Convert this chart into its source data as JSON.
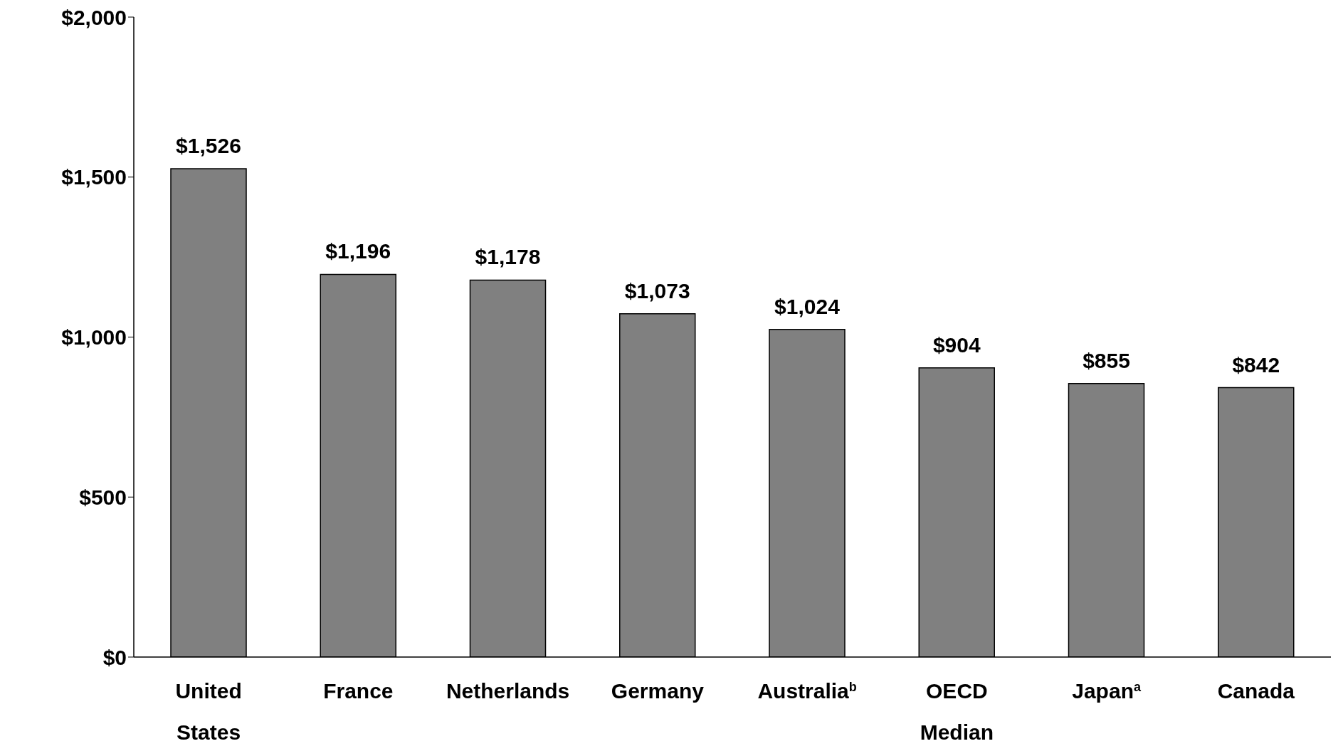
{
  "chart_data": {
    "type": "bar",
    "categories": [
      "United States",
      "France",
      "Netherlands",
      "Germany",
      "Australia$^{b}$",
      "OECD Median",
      "Japan$^{a}$",
      "Canada"
    ],
    "values": [
      1526,
      1196,
      1178,
      1073,
      1024,
      904,
      855,
      842
    ],
    "value_labels": [
      "$1,526",
      "$1,196",
      "$1,178",
      "$1,073",
      "$1,024",
      "$904",
      "$855",
      "$842"
    ],
    "color": "#808080",
    "ylim": [
      0,
      2000
    ],
    "yticks": [
      {
        "value": 0,
        "label": "$0"
      },
      {
        "value": 500,
        "label": "$500"
      },
      {
        "value": 1000,
        "label": "$1,000"
      },
      {
        "value": 1500,
        "label": "$1,500"
      },
      {
        "value": 2000,
        "label": "$2,000"
      }
    ],
    "grid": false,
    "legend": false
  }
}
